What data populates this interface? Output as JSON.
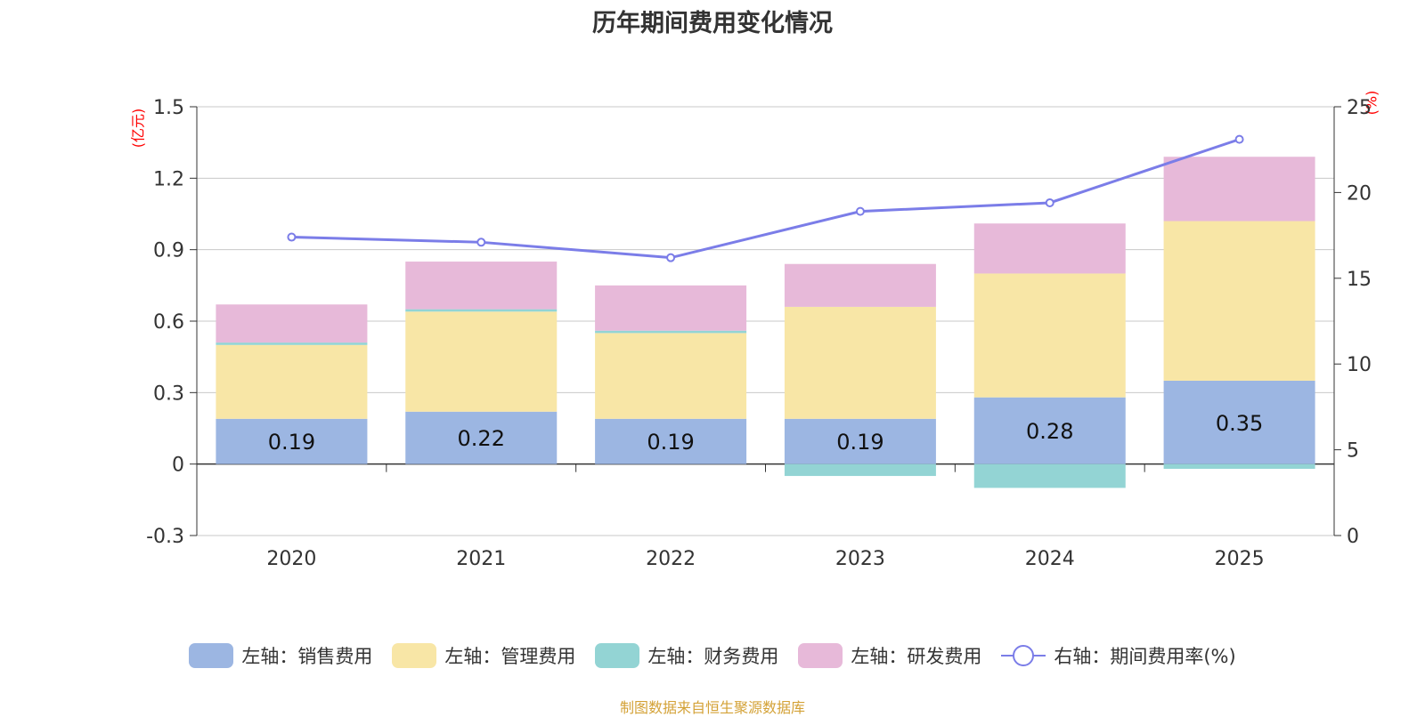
{
  "chart_data": {
    "type": "bar",
    "title": "历年期间费用变化情况",
    "categories": [
      "2020",
      "2021",
      "2022",
      "2023",
      "2024",
      "2025"
    ],
    "left_axis": {
      "unit": "(亿元)",
      "ylim": [
        -0.3,
        1.5
      ],
      "ticks": [
        "-0.3",
        "0",
        "0.3",
        "0.6",
        "0.9",
        "1.2",
        "1.5"
      ]
    },
    "right_axis": {
      "unit": "(%)",
      "ylim": [
        0,
        25
      ],
      "ticks": [
        "0",
        "5",
        "10",
        "15",
        "20",
        "25"
      ]
    },
    "series": [
      {
        "name": "左轴：销售费用",
        "axis": "left",
        "kind": "bar",
        "color": "#9cb6e2",
        "values": [
          0.19,
          0.22,
          0.19,
          0.19,
          0.28,
          0.35
        ]
      },
      {
        "name": "左轴：管理费用",
        "axis": "left",
        "kind": "bar",
        "color": "#f8e6a6",
        "values": [
          0.31,
          0.42,
          0.36,
          0.47,
          0.52,
          0.67
        ]
      },
      {
        "name": "左轴：财务费用",
        "axis": "left",
        "kind": "bar",
        "color": "#93d4d4",
        "values": [
          0.01,
          0.01,
          0.01,
          -0.05,
          -0.1,
          -0.02
        ]
      },
      {
        "name": "左轴：研发费用",
        "axis": "left",
        "kind": "bar",
        "color": "#e7b9d9",
        "values": [
          0.16,
          0.2,
          0.19,
          0.18,
          0.21,
          0.27
        ]
      },
      {
        "name": "右轴：期间费用率(%)",
        "axis": "right",
        "kind": "line",
        "color": "#7b7de8",
        "values": [
          17.4,
          17.1,
          16.2,
          18.9,
          19.4,
          23.1
        ]
      }
    ],
    "data_labels": [
      "0.19",
      "0.22",
      "0.19",
      "0.19",
      "0.28",
      "0.35"
    ],
    "legend_position": "bottom",
    "grid": true
  },
  "source_note": "制图数据来自恒生聚源数据库"
}
